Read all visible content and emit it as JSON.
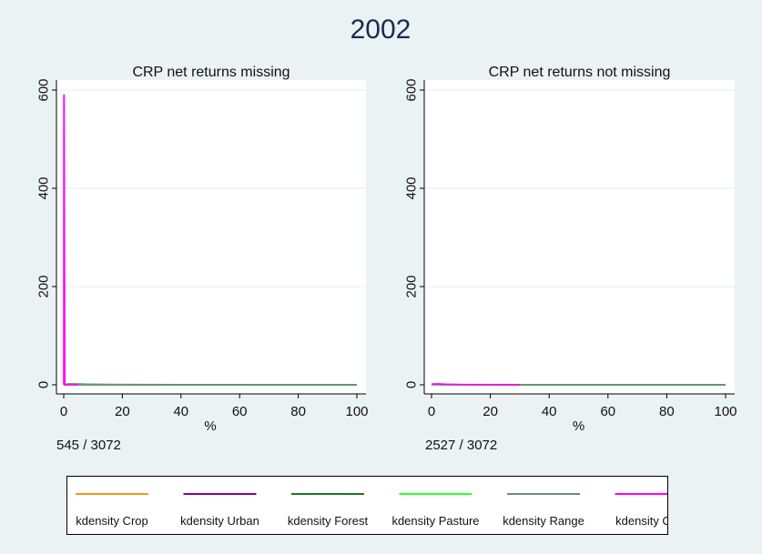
{
  "title": "2002",
  "colors": {
    "background": "#eaf2f3",
    "plot_background": "#ffffff",
    "title": "#1a2a4f",
    "grid": "#e6ecee"
  },
  "chart_data": [
    {
      "type": "line",
      "title": "CRP net returns missing",
      "xlabel": "%",
      "ylabel": "",
      "xlim": [
        0,
        100
      ],
      "ylim": [
        0,
        600
      ],
      "xticks": [
        "0",
        "20",
        "40",
        "60",
        "80",
        "100"
      ],
      "yticks": [
        "0",
        "200",
        "400",
        "600"
      ],
      "grid": true,
      "note": "545 / 3072",
      "series": [
        {
          "name": "kdensity Crop",
          "color": "#f7941d",
          "x": [
            0,
            1,
            5,
            10,
            30,
            60,
            100
          ],
          "y": [
            0,
            0.5,
            0.3,
            0.2,
            0.1,
            0.05,
            0.05
          ]
        },
        {
          "name": "kdensity Urban",
          "color": "#8b008b",
          "x": [
            0,
            1,
            5,
            10,
            30,
            60,
            100
          ],
          "y": [
            0,
            0.4,
            0.3,
            0.2,
            0.1,
            0.05,
            0.05
          ]
        },
        {
          "name": "kdensity Forest",
          "color": "#1a7a1a",
          "x": [
            0,
            0.5,
            2,
            8,
            20,
            40,
            60,
            80,
            100
          ],
          "y": [
            0,
            1,
            1.8,
            1,
            0.6,
            0.4,
            0.3,
            0.2,
            0.1
          ]
        },
        {
          "name": "kdensity Pasture",
          "color": "#32ff32",
          "x": [
            0,
            1,
            5,
            10,
            30,
            60,
            100
          ],
          "y": [
            0,
            0.6,
            0.4,
            0.2,
            0.1,
            0.05,
            0.05
          ]
        },
        {
          "name": "kdensity Range",
          "color": "#6e8b7d",
          "x": [
            0,
            1,
            5,
            10,
            30,
            60,
            100
          ],
          "y": [
            0,
            0.5,
            0.3,
            0.2,
            0.1,
            0.05,
            0.05
          ]
        },
        {
          "name": "kdensity CRP",
          "color": "#ff00ff",
          "x": [
            0,
            0.05,
            0.15,
            0.25,
            0.4,
            1,
            2,
            5
          ],
          "y": [
            0,
            590,
            590,
            300,
            0,
            0,
            0,
            0
          ]
        }
      ]
    },
    {
      "type": "line",
      "title": "CRP net returns not missing",
      "xlabel": "%",
      "ylabel": "",
      "xlim": [
        0,
        100
      ],
      "ylim": [
        0,
        600
      ],
      "xticks": [
        "0",
        "20",
        "40",
        "60",
        "80",
        "100"
      ],
      "yticks": [
        "0",
        "200",
        "400",
        "600"
      ],
      "grid": true,
      "note": "2527 / 3072",
      "series": [
        {
          "name": "kdensity Crop",
          "color": "#f7941d",
          "x": [
            0,
            5,
            20,
            50,
            80,
            100
          ],
          "y": [
            0.4,
            0.3,
            0.2,
            0.1,
            0.05,
            0.05
          ]
        },
        {
          "name": "kdensity Urban",
          "color": "#8b008b",
          "x": [
            0,
            5,
            20,
            50,
            80,
            100
          ],
          "y": [
            0.5,
            0.3,
            0.2,
            0.1,
            0.05,
            0.05
          ]
        },
        {
          "name": "kdensity Forest",
          "color": "#1a7a1a",
          "x": [
            0,
            5,
            20,
            50,
            80,
            100
          ],
          "y": [
            0.6,
            0.4,
            0.3,
            0.2,
            0.1,
            0.1
          ]
        },
        {
          "name": "kdensity Pasture",
          "color": "#32ff32",
          "x": [
            0,
            5,
            20,
            50,
            80,
            100
          ],
          "y": [
            0.4,
            0.3,
            0.2,
            0.1,
            0.05,
            0.05
          ]
        },
        {
          "name": "kdensity Range",
          "color": "#6e8b7d",
          "x": [
            0,
            5,
            20,
            50,
            80,
            100
          ],
          "y": [
            0.5,
            0.4,
            0.3,
            0.2,
            0.1,
            0.1
          ]
        },
        {
          "name": "kdensity CRP",
          "color": "#ff00ff",
          "x": [
            0,
            2,
            5,
            10,
            20,
            30
          ],
          "y": [
            1.5,
            2,
            1.2,
            0.6,
            0.3,
            0.2
          ]
        }
      ]
    }
  ],
  "legend": {
    "items": [
      {
        "label": "kdensity Crop",
        "color": "#f7941d"
      },
      {
        "label": "kdensity Urban",
        "color": "#8b008b"
      },
      {
        "label": "kdensity Forest",
        "color": "#1a7a1a"
      },
      {
        "label": "kdensity Pasture",
        "color": "#32ff32"
      },
      {
        "label": "kdensity Range",
        "color": "#6e8b7d"
      },
      {
        "label": "kdensity CRP",
        "color": "#ff00ff"
      }
    ]
  }
}
